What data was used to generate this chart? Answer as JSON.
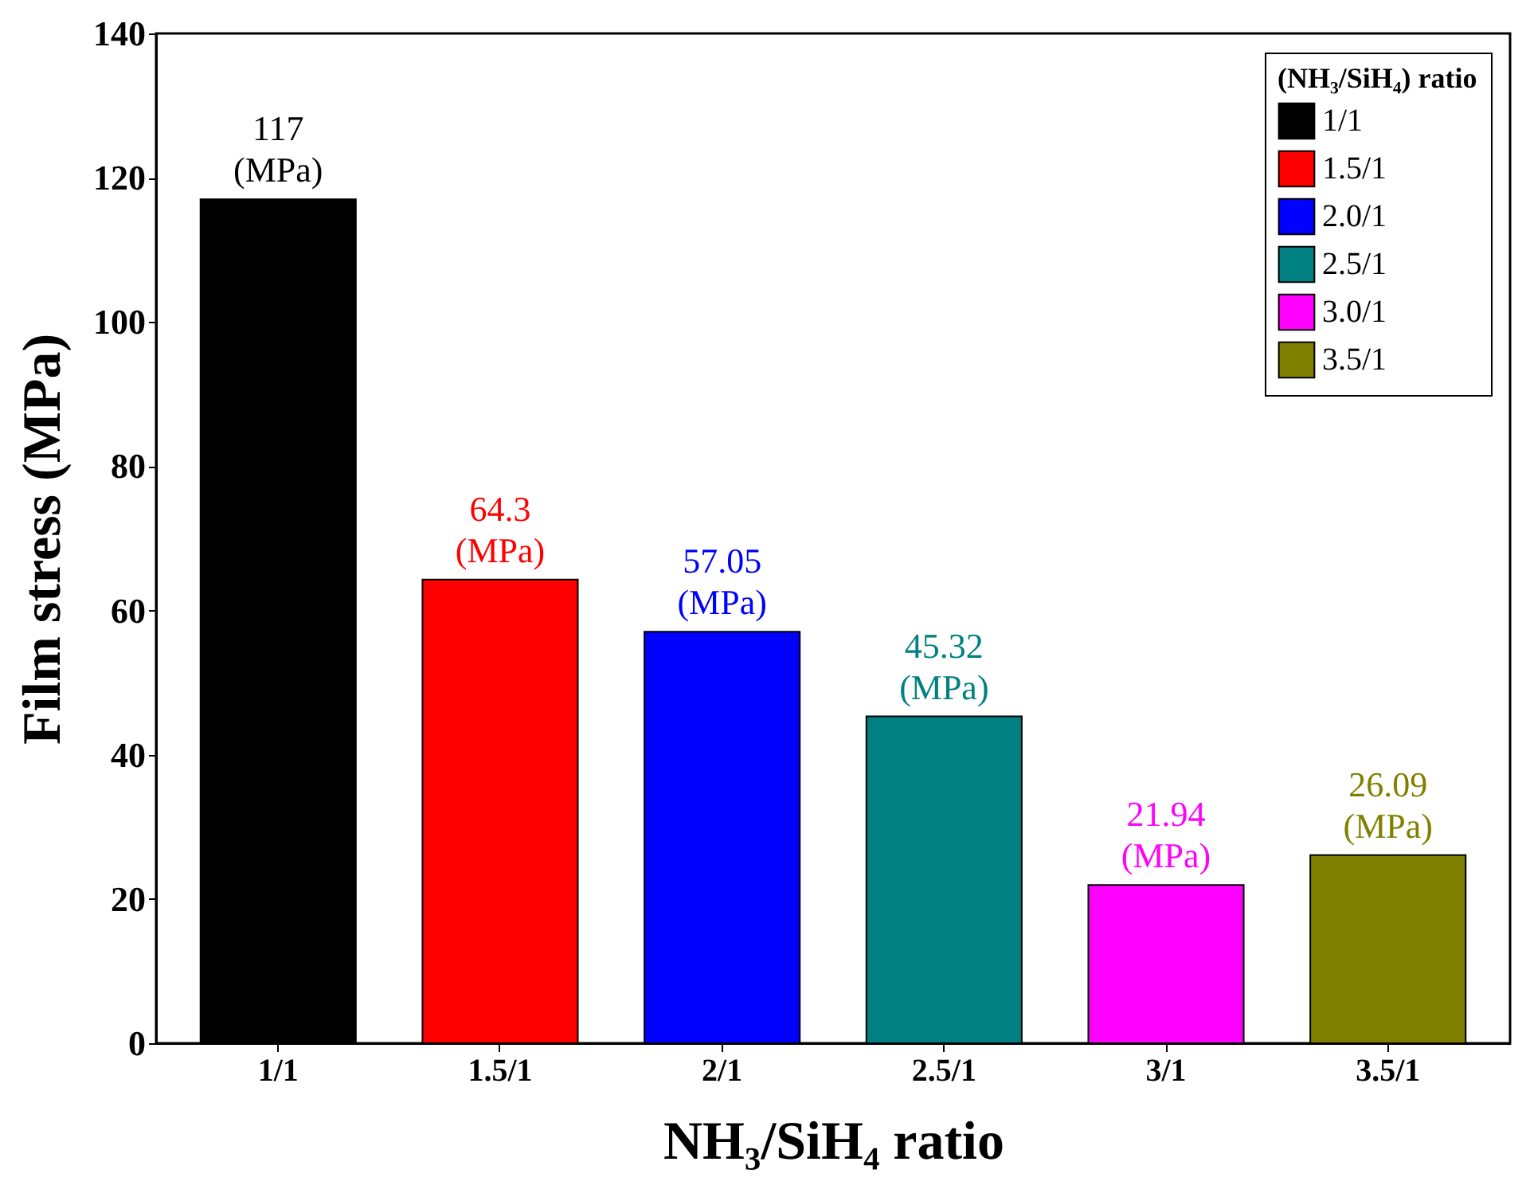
{
  "chart_data": {
    "type": "bar",
    "xlabel": "NH₃/SiH₄ ratio",
    "ylabel": "Film stress (MPa)",
    "legend_title": "(NH₃/SiH₄) ratio",
    "categories": [
      "1/1",
      "1.5/1",
      "2/1",
      "2.5/1",
      "3/1",
      "3.5/1"
    ],
    "series": [
      {
        "name": "1/1",
        "color": "#000000",
        "values": [
          117,
          null,
          null,
          null,
          null,
          null
        ],
        "value_labels": [
          "117\n(MPa)",
          null,
          null,
          null,
          null,
          null
        ]
      },
      {
        "name": "1.5/1",
        "color": "#ff0000",
        "values": [
          null,
          64.3,
          null,
          null,
          null,
          null
        ],
        "value_labels": [
          null,
          "64.3\n(MPa)",
          null,
          null,
          null,
          null
        ]
      },
      {
        "name": "2.0/1",
        "color": "#0000ff",
        "values": [
          null,
          null,
          57.05,
          null,
          null,
          null
        ],
        "value_labels": [
          null,
          null,
          "57.05\n(MPa)",
          null,
          null,
          null
        ]
      },
      {
        "name": "2.5/1",
        "color": "#008080",
        "values": [
          null,
          null,
          null,
          45.32,
          null,
          null
        ],
        "value_labels": [
          null,
          null,
          null,
          "45.32\n(MPa)",
          null,
          null
        ]
      },
      {
        "name": "3.0/1",
        "color": "#ff00ff",
        "values": [
          null,
          null,
          null,
          null,
          21.94,
          null
        ],
        "value_labels": [
          null,
          null,
          null,
          null,
          "21.94\n(MPa)",
          null
        ]
      },
      {
        "name": "3.5/1",
        "color": "#808000",
        "values": [
          null,
          null,
          null,
          null,
          null,
          26.09
        ],
        "value_labels": [
          null,
          null,
          null,
          null,
          null,
          "26.09\n(MPa)"
        ]
      }
    ],
    "ylim": [
      0,
      140
    ],
    "yticks": [
      0,
      20,
      40,
      60,
      80,
      100,
      120,
      140
    ],
    "grid": false,
    "legend": "top right"
  }
}
